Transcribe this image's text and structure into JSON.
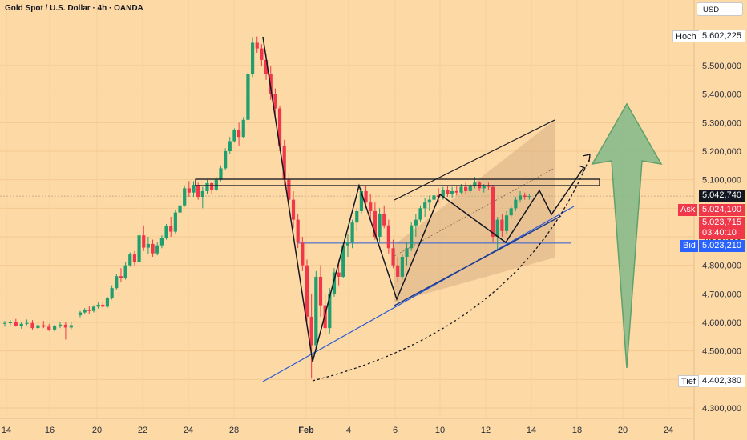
{
  "header": {
    "symbol_title": "Gold Spot / U.S. Dollar · 4h · OANDA"
  },
  "currency_button": {
    "label": "USD"
  },
  "colors": {
    "background": "#fdd9a6",
    "bull": "#1f9e6f",
    "bear": "#f1374a",
    "channel_fill": "#d8ae84",
    "arrow_fill": "#82b98a",
    "arrow_stroke": "#5fa06b",
    "support": "#2a5bd7",
    "last_price": "#131722",
    "ask": "#f1374a",
    "bid": "#2962ff"
  },
  "chart_data": {
    "type": "candlestick",
    "timeframe": "4h",
    "symbol": "XAUUSD",
    "ylim": [
      4250000,
      5680000
    ],
    "y_ticks": [
      4300000,
      4400000,
      4500000,
      4600000,
      4700000,
      4800000,
      4900000,
      5000000,
      5100000,
      5200000,
      5300000,
      5400000,
      5500000
    ],
    "y_tick_labels": [
      "4.300,000",
      "4.400,000",
      "4.500,000",
      "4.600,000",
      "4.700,000",
      "4.800,000",
      "4.900,000",
      "5.000,000",
      "5.100,000",
      "5.200,000",
      "5.300,000",
      "5.400,000",
      "5.500,000"
    ],
    "x_tick_labels": [
      "14",
      "16",
      "20",
      "22",
      "24",
      "28",
      "Feb",
      "4",
      "6",
      "10",
      "12",
      "14",
      "18",
      "20",
      "24"
    ],
    "candles": [
      [
        4595000,
        4605000,
        4585000,
        4598000
      ],
      [
        4598000,
        4608000,
        4590000,
        4600000
      ],
      [
        4600000,
        4612000,
        4585000,
        4588000
      ],
      [
        4588000,
        4600000,
        4578000,
        4595000
      ],
      [
        4595000,
        4610000,
        4590000,
        4598000
      ],
      [
        4598000,
        4608000,
        4575000,
        4580000
      ],
      [
        4580000,
        4598000,
        4572000,
        4590000
      ],
      [
        4590000,
        4605000,
        4580000,
        4585000
      ],
      [
        4585000,
        4595000,
        4570000,
        4575000
      ],
      [
        4575000,
        4592000,
        4568000,
        4588000
      ],
      [
        4588000,
        4600000,
        4580000,
        4592000
      ],
      [
        4592000,
        4600000,
        4540000,
        4582000
      ],
      [
        4582000,
        4600000,
        4575000,
        4590000
      ],
      [
        4625000,
        4640000,
        4618000,
        4635000
      ],
      [
        4635000,
        4650000,
        4628000,
        4645000
      ],
      [
        4645000,
        4658000,
        4630000,
        4640000
      ],
      [
        4640000,
        4660000,
        4635000,
        4655000
      ],
      [
        4655000,
        4670000,
        4648000,
        4662000
      ],
      [
        4662000,
        4675000,
        4650000,
        4655000
      ],
      [
        4655000,
        4690000,
        4650000,
        4685000
      ],
      [
        4685000,
        4730000,
        4680000,
        4720000
      ],
      [
        4720000,
        4770000,
        4715000,
        4762000
      ],
      [
        4762000,
        4790000,
        4740000,
        4755000
      ],
      [
        4755000,
        4810000,
        4750000,
        4800000
      ],
      [
        4800000,
        4845000,
        4795000,
        4838000
      ],
      [
        4838000,
        4850000,
        4800000,
        4812000
      ],
      [
        4812000,
        4920000,
        4808000,
        4905000
      ],
      [
        4905000,
        4940000,
        4850000,
        4862000
      ],
      [
        4862000,
        4900000,
        4840000,
        4875000
      ],
      [
        4875000,
        4890000,
        4830000,
        4842000
      ],
      [
        4842000,
        4880000,
        4835000,
        4870000
      ],
      [
        4870000,
        4905000,
        4860000,
        4895000
      ],
      [
        4895000,
        4945000,
        4890000,
        4938000
      ],
      [
        4938000,
        4970000,
        4900000,
        4918000
      ],
      [
        4918000,
        4995000,
        4912000,
        4985000
      ],
      [
        4985000,
        5025000,
        4980000,
        5010000
      ],
      [
        5010000,
        5080000,
        5005000,
        5070000
      ],
      [
        5070000,
        5095000,
        5040000,
        5055000
      ],
      [
        5055000,
        5095000,
        5040000,
        5082000
      ],
      [
        5082000,
        5090000,
        5030000,
        5040000
      ],
      [
        5040000,
        5075000,
        5000000,
        5060000
      ],
      [
        5060000,
        5100000,
        5050000,
        5088000
      ],
      [
        5088000,
        5092000,
        5050000,
        5065000
      ],
      [
        5065000,
        5110000,
        5060000,
        5100000
      ],
      [
        5100000,
        5150000,
        5095000,
        5140000
      ],
      [
        5140000,
        5210000,
        5135000,
        5200000
      ],
      [
        5200000,
        5250000,
        5190000,
        5235000
      ],
      [
        5235000,
        5280000,
        5230000,
        5275000
      ],
      [
        5275000,
        5300000,
        5220000,
        5250000
      ],
      [
        5250000,
        5320000,
        5245000,
        5310000
      ],
      [
        5310000,
        5480000,
        5305000,
        5470000
      ],
      [
        5470000,
        5600000,
        5460000,
        5580000
      ],
      [
        5580000,
        5602000,
        5545000,
        5560000
      ],
      [
        5560000,
        5575000,
        5500000,
        5520000
      ],
      [
        5520000,
        5540000,
        5450000,
        5470000
      ],
      [
        5470000,
        5500000,
        5380000,
        5400000
      ],
      [
        5400000,
        5420000,
        5320000,
        5350000
      ],
      [
        5350000,
        5360000,
        5200000,
        5220000
      ],
      [
        5220000,
        5240000,
        5080000,
        5100000
      ],
      [
        5100000,
        5120000,
        5000000,
        5030000
      ],
      [
        5030000,
        5060000,
        4930000,
        4960000
      ],
      [
        4960000,
        4980000,
        4860000,
        4880000
      ],
      [
        4880000,
        4900000,
        4780000,
        4800000
      ],
      [
        4800000,
        4820000,
        4600000,
        4620000
      ],
      [
        4620000,
        4700000,
        4403000,
        4520000
      ],
      [
        4520000,
        4780000,
        4510000,
        4760000
      ],
      [
        4760000,
        4800000,
        4620000,
        4660000
      ],
      [
        4660000,
        4700000,
        4560000,
        4580000
      ],
      [
        4580000,
        4720000,
        4560000,
        4700000
      ],
      [
        4700000,
        4790000,
        4690000,
        4775000
      ],
      [
        4775000,
        4820000,
        4730000,
        4760000
      ],
      [
        4760000,
        4880000,
        4755000,
        4870000
      ],
      [
        4870000,
        4910000,
        4830000,
        4880000
      ],
      [
        4880000,
        4960000,
        4860000,
        4950000
      ],
      [
        4950000,
        5000000,
        4920000,
        4990000
      ],
      [
        4990000,
        5070000,
        4980000,
        5060000
      ],
      [
        5060000,
        5080000,
        5000000,
        5020000
      ],
      [
        5020000,
        5050000,
        4960000,
        4990000
      ],
      [
        4990000,
        5020000,
        4890000,
        4900000
      ],
      [
        4900000,
        5000000,
        4880000,
        4980000
      ],
      [
        4980000,
        5010000,
        4930000,
        4940000
      ],
      [
        4940000,
        4960000,
        4840000,
        4860000
      ],
      [
        4860000,
        4890000,
        4790000,
        4800000
      ],
      [
        4800000,
        4830000,
        4740000,
        4760000
      ],
      [
        4760000,
        4840000,
        4750000,
        4830000
      ],
      [
        4830000,
        4880000,
        4800000,
        4860000
      ],
      [
        4860000,
        4950000,
        4850000,
        4940000
      ],
      [
        4940000,
        4980000,
        4900000,
        4960000
      ],
      [
        4960000,
        5010000,
        4950000,
        5000000
      ],
      [
        5000000,
        5035000,
        4970000,
        5020000
      ],
      [
        5020000,
        5045000,
        4990000,
        5030000
      ],
      [
        5030000,
        5060000,
        5010000,
        5045000
      ],
      [
        5045000,
        5070000,
        5020000,
        5040000
      ],
      [
        5040000,
        5075000,
        5030000,
        5065000
      ],
      [
        5065000,
        5080000,
        5040000,
        5050000
      ],
      [
        5050000,
        5075000,
        5035000,
        5060000
      ],
      [
        5060000,
        5080000,
        5045000,
        5055000
      ],
      [
        5055000,
        5085000,
        5050000,
        5075000
      ],
      [
        5075000,
        5090000,
        5050000,
        5060000
      ],
      [
        5060000,
        5085000,
        5055000,
        5078000
      ],
      [
        5078000,
        5110000,
        5070000,
        5090000
      ],
      [
        5090000,
        5095000,
        5060000,
        5070000
      ],
      [
        5070000,
        5085000,
        5055000,
        5080000
      ],
      [
        5080000,
        5090000,
        5065000,
        5075000
      ],
      [
        5075000,
        5082000,
        4880000,
        4900000
      ],
      [
        4900000,
        4970000,
        4850000,
        4960000
      ],
      [
        4960000,
        4980000,
        4900000,
        4920000
      ],
      [
        4920000,
        4990000,
        4910000,
        4975000
      ],
      [
        4975000,
        5010000,
        4965000,
        5000000
      ],
      [
        5000000,
        5040000,
        4990000,
        5030000
      ],
      [
        5030000,
        5060000,
        5020000,
        5045000
      ],
      [
        5045000,
        5055000,
        5030000,
        5040000
      ],
      [
        5040000,
        5050000,
        5030000,
        5042740
      ]
    ],
    "drawings": {
      "resistance_zone": [
        5090000,
        5080000
      ],
      "support_lines": [
        4952000,
        4878000
      ],
      "zigzag_points": [
        [
          5590000
        ],
        [
          4455000
        ],
        [
          5075000
        ],
        [
          4660000
        ],
        [
          5040000
        ]
      ],
      "projection": {
        "direction": "up",
        "target": 5180000
      }
    }
  },
  "price_labels": {
    "high": {
      "label": "Hoch",
      "value": "5.602,225"
    },
    "low": {
      "label": "Tief",
      "value": "4.402,380"
    },
    "last": {
      "value": "5.042,740"
    },
    "ask": {
      "label": "Ask",
      "value": "5.024,100"
    },
    "ask_price": {
      "value": "5.023,715"
    },
    "countdown": {
      "value": "03:40:10"
    },
    "bid": {
      "label": "Bid",
      "value": "5.023,210"
    }
  }
}
